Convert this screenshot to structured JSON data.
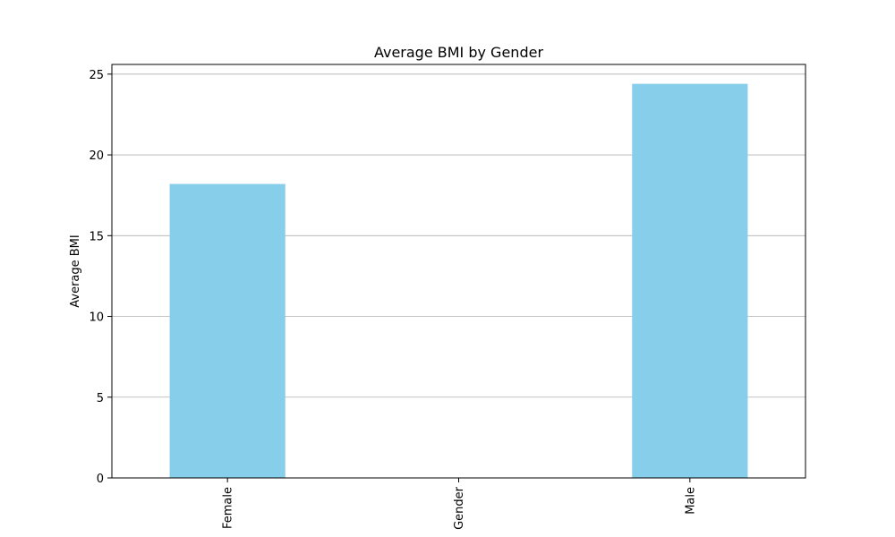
{
  "chart_data": {
    "type": "bar",
    "title": "Average BMI by Gender",
    "xlabel": "",
    "ylabel": "Average BMI",
    "categories": [
      "Female",
      "Gender",
      "Male"
    ],
    "values": [
      18.2,
      0,
      24.4
    ],
    "ylim": [
      0,
      25.6
    ],
    "yticks": [
      0,
      5,
      10,
      15,
      20,
      25
    ],
    "bar_color": "#87CEEB",
    "grid": "y",
    "legend": "none"
  }
}
